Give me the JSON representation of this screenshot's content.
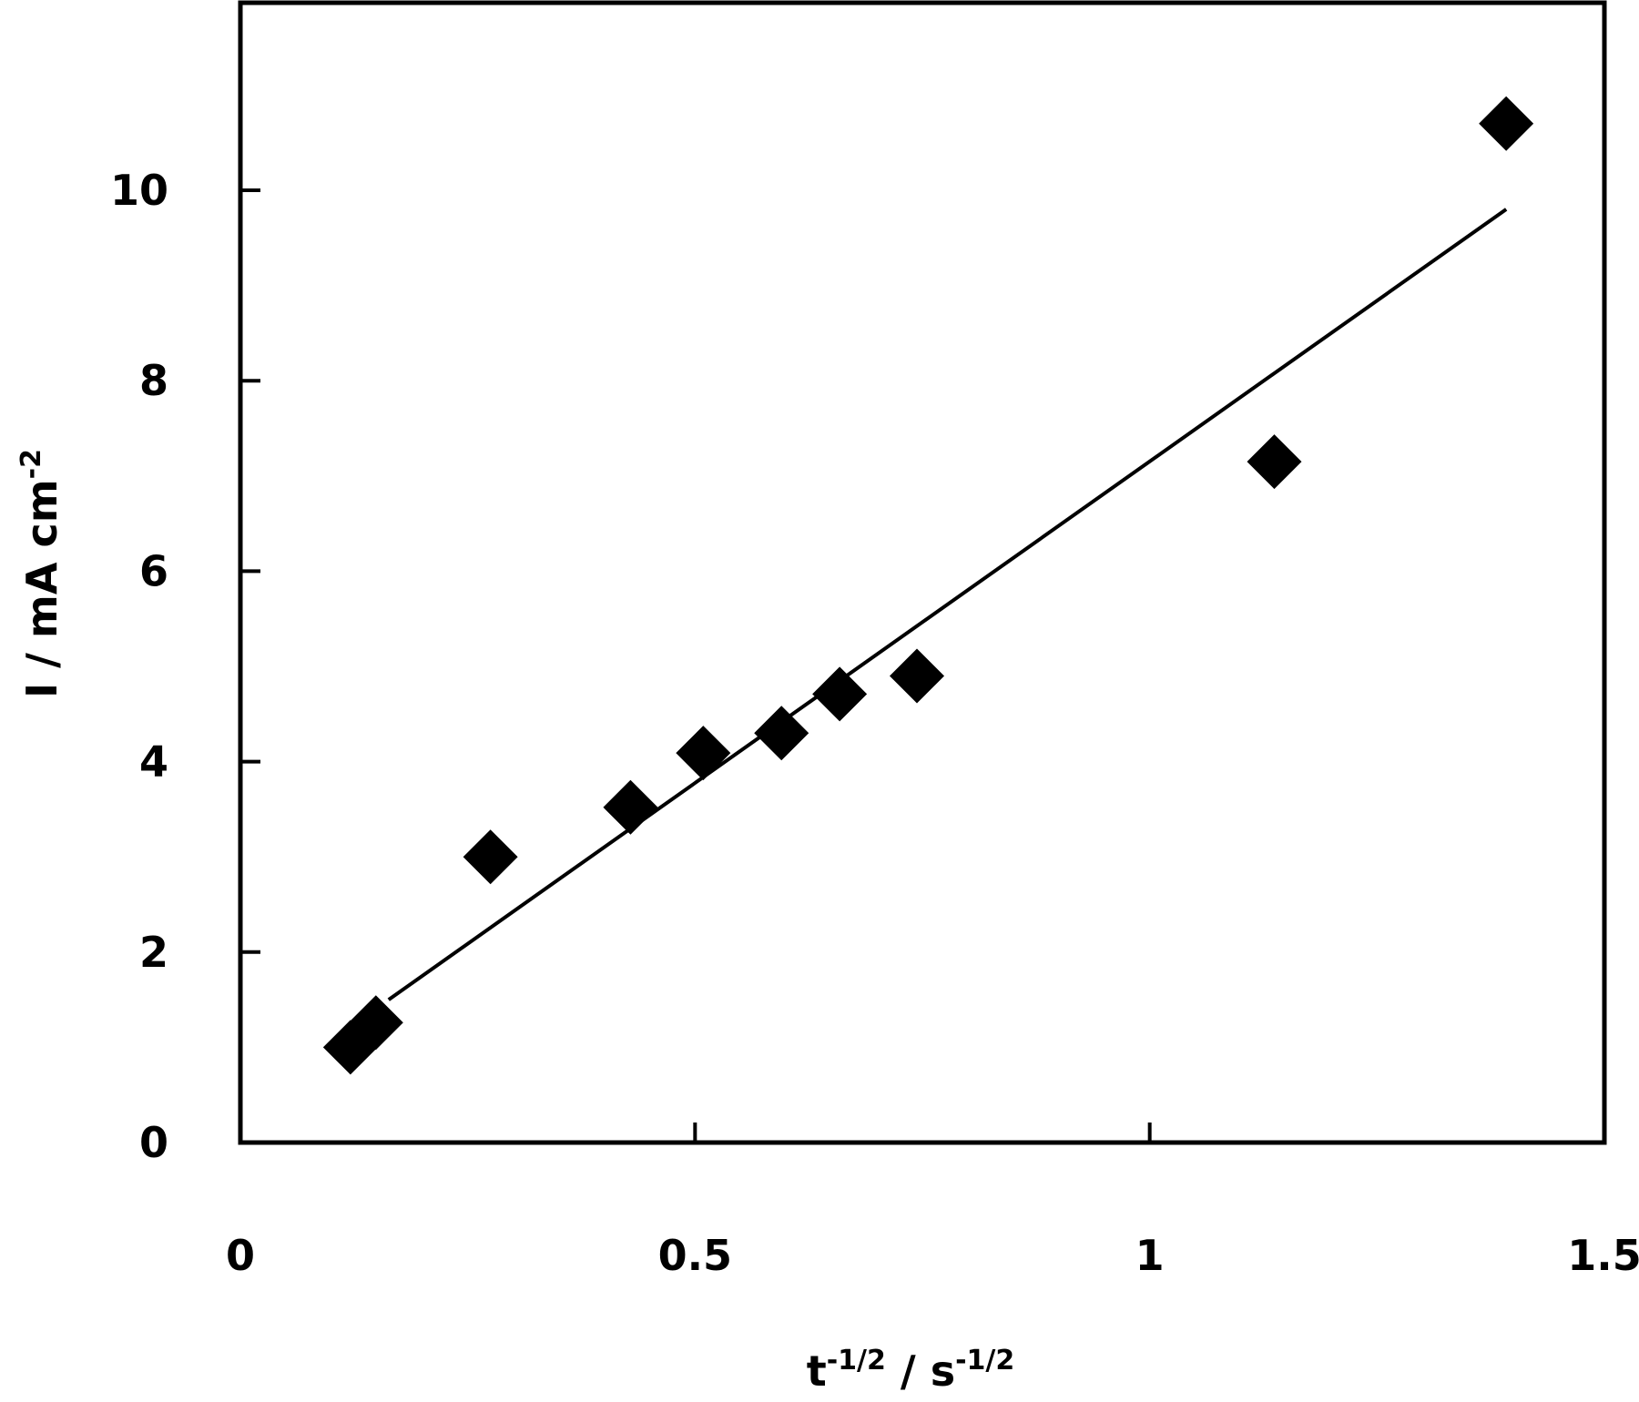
{
  "chart_data": {
    "type": "scatter",
    "title": "",
    "xlabel": "t-1/2 / s-1/2",
    "xlabel_parts": {
      "base1": "t",
      "sup1": "-1/2",
      "sep": " / ",
      "base2": "s",
      "sup2": "-1/2"
    },
    "ylabel": "I / mA cm-2",
    "ylabel_parts": {
      "base": "I / mA cm",
      "sup": "-2"
    },
    "xlim": [
      0,
      1.5
    ],
    "ylim": [
      0,
      12
    ],
    "x_ticks": [
      0,
      0.5,
      1,
      1.5
    ],
    "x_tick_labels": [
      "0",
      "0.5",
      "1",
      "1.5"
    ],
    "y_ticks": [
      0,
      2,
      4,
      6,
      8,
      10
    ],
    "y_tick_labels": [
      "0",
      "2",
      "4",
      "6",
      "8",
      "10"
    ],
    "grid": false,
    "legend": null,
    "series": [
      {
        "name": "data",
        "marker": "diamond",
        "color": "#000000",
        "x": [
          0.121,
          0.149,
          0.275,
          0.429,
          0.509,
          0.595,
          0.659,
          0.744,
          1.137,
          1.392
        ],
        "y": [
          1.0,
          1.26,
          3.0,
          3.52,
          4.09,
          4.3,
          4.71,
          4.9,
          7.15,
          10.7
        ]
      },
      {
        "name": "linear fit",
        "type": "line",
        "color": "#000000",
        "x": [
          0.163,
          1.392
        ],
        "y": [
          1.5,
          9.8
        ]
      }
    ]
  }
}
